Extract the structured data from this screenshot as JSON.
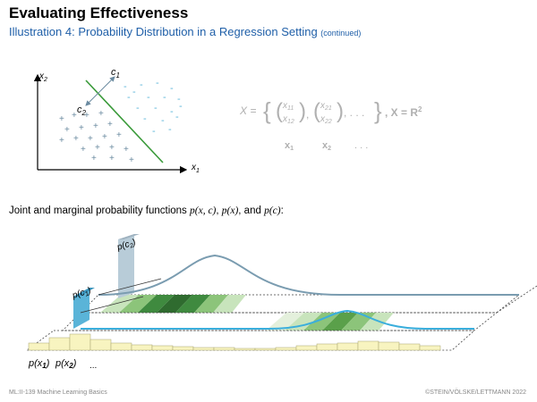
{
  "header": {
    "title": "Evaluating Effectiveness",
    "subtitle": "Illustration 4:  Probability Distribution in a Regression Setting",
    "subtitle_note": "(continued)"
  },
  "scatter_plot": {
    "x_axis_label": "x",
    "x_axis_sub": "1",
    "y_axis_label": "x",
    "y_axis_sub": "2",
    "class1_label": "c",
    "class1_sub": "1",
    "class2_label": "c",
    "class2_sub": "2",
    "class1_symbol": "-",
    "class2_symbol": "+",
    "separator_color": "#3a9a3a",
    "class1_color": "#5ab4d8",
    "class2_color": "#6a8aa0"
  },
  "formula": {
    "lhs": "X =",
    "set_open": "{",
    "v1_top": "x",
    "v1_top_sub": "11",
    "v1_bot": "x",
    "v1_bot_sub": "12",
    "v2_top": "x",
    "v2_top_sub": "21",
    "v2_bot": "x",
    "v2_bot_sub": "22",
    "ellipsis": ", . . .",
    "set_close": "}",
    "space_def": ",  X = R",
    "space_exp": "2",
    "vector_labels": [
      "x",
      "x",
      ". . ."
    ],
    "vector_subs": [
      "1",
      "2",
      ""
    ]
  },
  "joint_text": {
    "prefix": "Joint and marginal probability functions",
    "f1": "p(x, c)",
    "f2": "p(x)",
    "f3": "p(c)",
    "suffix": ":"
  },
  "distribution_figure": {
    "prob_c1_label": "p(c",
    "prob_c1_sub": "1",
    "prob_c2_label": "p(c",
    "prob_c2_sub": "2",
    "bottom_labels": [
      "p(x",
      "p(x"
    ],
    "bottom_subs": [
      "1",
      "2"
    ],
    "bottom_ellipsis": "...",
    "bar_c1_color": "#5ab4d8",
    "bar_c2_color": "#b8ccd8",
    "curve_c2_color": "#7a9cb0",
    "curve_c1_color": "#3aaedc",
    "histogram_color": "#f8f4c0",
    "strip_dark_green": "#2f6b2f",
    "strip_light_green": "#c8e4bc"
  },
  "footer": {
    "left": "ML:II-139    Machine Learning Basics",
    "right": "©STEIN/VÖLSKE/LETTMANN 2022"
  }
}
